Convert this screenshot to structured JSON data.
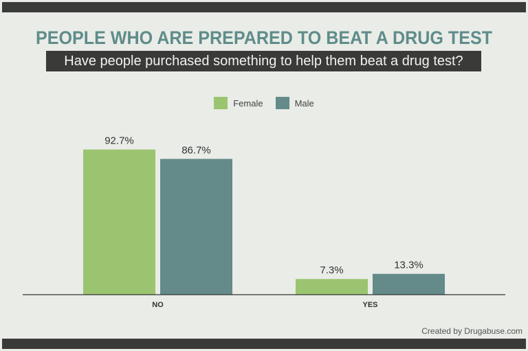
{
  "chart_data": {
    "type": "bar",
    "title": "PEOPLE WHO ARE PREPARED TO BEAT A DRUG TEST",
    "subtitle": "Have people purchased something to help them beat a drug test?",
    "categories": [
      "NO",
      "YES"
    ],
    "series": [
      {
        "name": "Female",
        "color": "#9bc470",
        "values": [
          92.7,
          7.3
        ],
        "labels": [
          "92.7%",
          "7.3%"
        ]
      },
      {
        "name": "Male",
        "color": "#648a8a",
        "values": [
          86.7,
          13.3
        ],
        "labels": [
          "86.7%",
          "13.3%"
        ]
      }
    ],
    "ylim": [
      0,
      100
    ],
    "grid": false,
    "legend_position": "top-center"
  },
  "credit": "Created by Drugabuse.com"
}
